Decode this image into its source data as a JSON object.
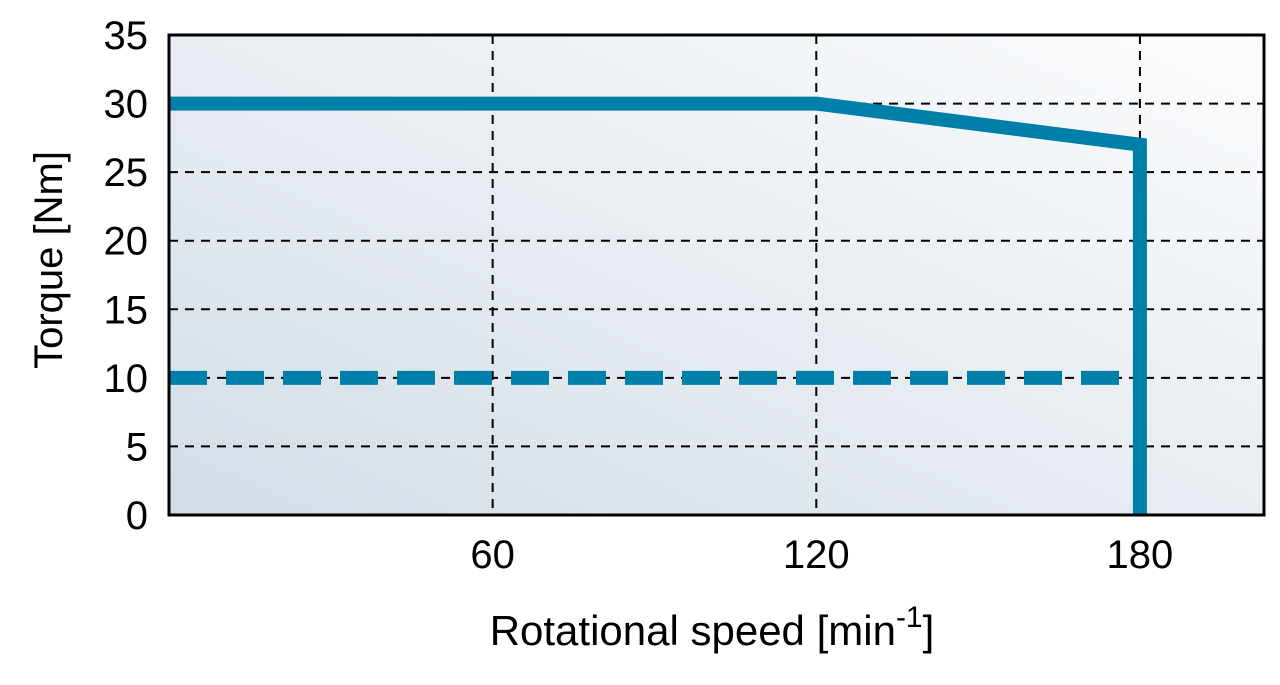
{
  "chart_data": {
    "type": "line",
    "title": "",
    "xlabel": "Rotational speed [min",
    "xlabel_superscript": "-1",
    "xlabel_suffix": "]",
    "ylabel": "Torque [Nm]",
    "xlim": [
      0,
      203
    ],
    "ylim": [
      0,
      35
    ],
    "x_ticks": [
      60,
      120,
      180
    ],
    "x_tick_labels": [
      "60",
      "120",
      "180"
    ],
    "y_ticks": [
      0,
      5,
      10,
      15,
      20,
      25,
      30,
      35
    ],
    "y_tick_labels": [
      "0",
      "5",
      "10",
      "15",
      "20",
      "25",
      "30",
      "35"
    ],
    "grid": true,
    "grid_style": "dashed",
    "background": "gradient",
    "series": [
      {
        "style": "solid",
        "color": "#0080A8",
        "x": [
          0,
          120,
          180,
          180
        ],
        "y": [
          30,
          30,
          27,
          0
        ]
      },
      {
        "style": "dashed",
        "color": "#0080A8",
        "x": [
          0,
          180
        ],
        "y": [
          10,
          10
        ]
      }
    ]
  }
}
